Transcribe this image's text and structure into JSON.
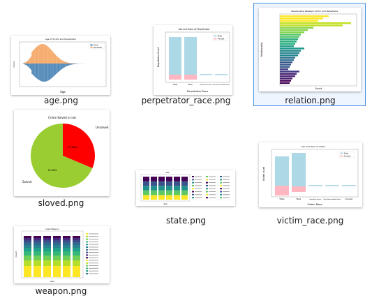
{
  "files": [
    {
      "name": "age.png"
    },
    {
      "name": "perpetrator_race.png"
    },
    {
      "name": "relation.png",
      "selected": true
    },
    {
      "name": "sloved.png"
    },
    {
      "name": "state.png"
    },
    {
      "name": "victim_race.png"
    },
    {
      "name": "weapon.png"
    }
  ],
  "thumbs": {
    "age": {
      "title": "Age of Victim and Perpetrator",
      "xlabel": "Age",
      "ylabel": "Count",
      "legend": [
        "Victim",
        "Perpetrator"
      ]
    },
    "perpetrator_race": {
      "title": "Sex and Race of Perpetrator",
      "xlabel": "Perpetrator Race",
      "ylabel": "Perpetrator Count",
      "legend": [
        "Male",
        "Female"
      ],
      "categories": [
        "White",
        "Black",
        "Asian/Pacific Islander",
        "Native American/Alaska Native",
        "Unknown"
      ]
    },
    "relation": {
      "title": "Relationship between Victim and Perpetrator",
      "xlabel": "Count",
      "ylabel": "Relationship"
    },
    "sloved": {
      "title": "Crime Solved or not",
      "slices": [
        {
          "label": "Unsolved",
          "pct": "29.64%",
          "value": 29.64,
          "color": "#ff0000"
        },
        {
          "label": "Solved",
          "pct": "70.36%",
          "value": 70.36,
          "color": "#9acd32"
        }
      ]
    },
    "state": {
      "title": "Year",
      "xlabel": "Year"
    },
    "victim_race": {
      "title": "Sex and Race of Victim",
      "xlabel": "Victim Race",
      "ylabel": "Victim count",
      "legend": [
        "Male",
        "Female"
      ],
      "categories": [
        "White",
        "Black",
        "Asian/Pacific Islander",
        "Native American/Alaska Native",
        "Unknown"
      ]
    },
    "weapon": {
      "title": "Used Weapon",
      "xlabel": "Year",
      "ylabel": "Count"
    }
  },
  "colors": {
    "selection_border": "#4a90e2",
    "selection_fill": "#eef5ff",
    "orange": "#f4a460",
    "steelblue": "#4682b4",
    "lightblue": "#add8e6",
    "pink": "#ffb6c1",
    "red": "#ff0000",
    "yellowgreen": "#9acd32"
  }
}
